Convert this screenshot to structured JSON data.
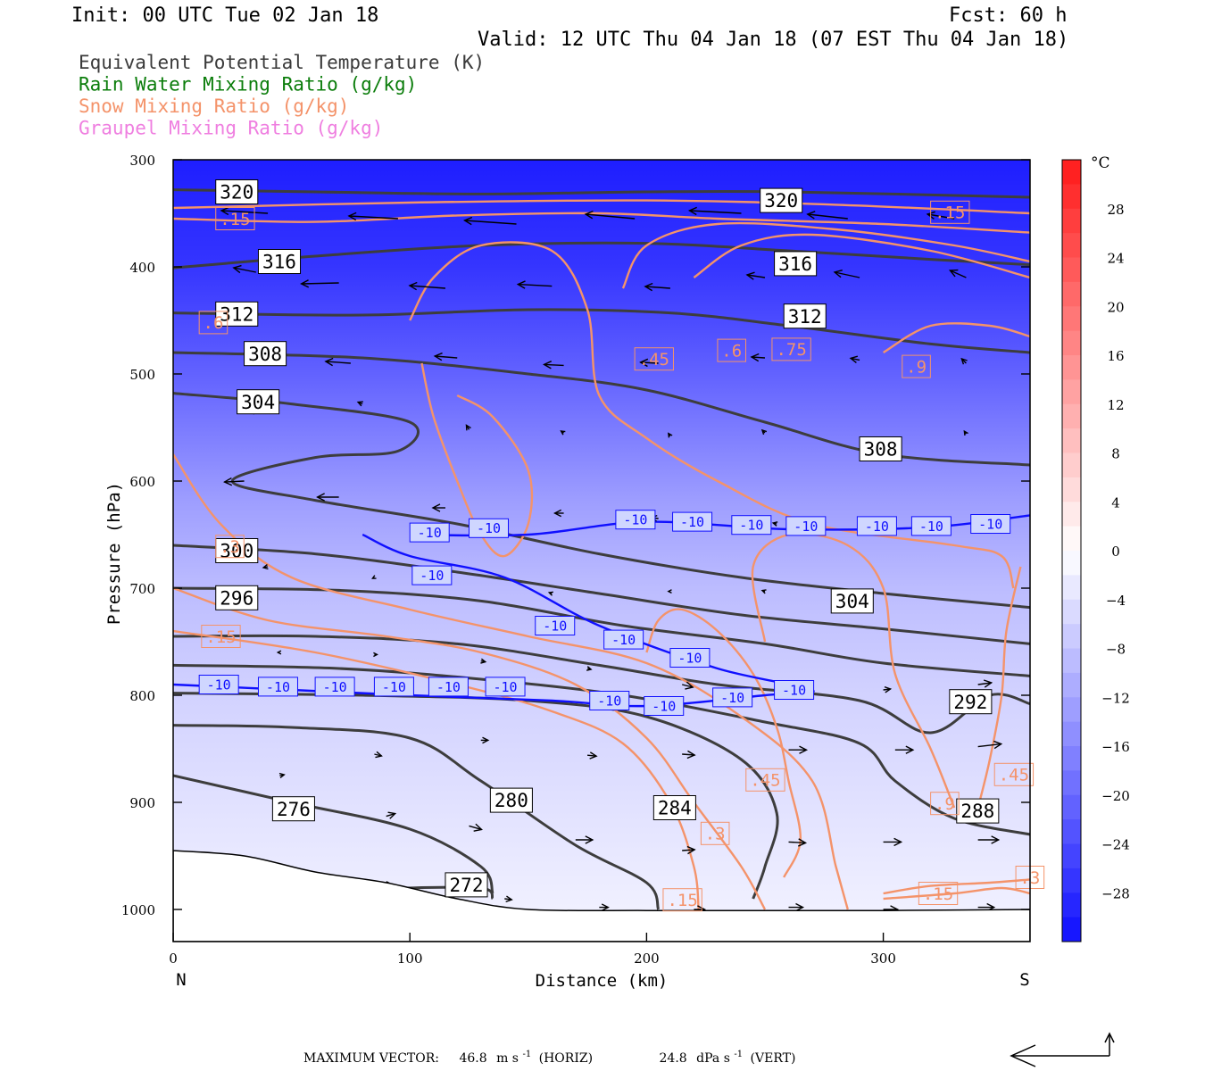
{
  "header": {
    "init": "Init: 00 UTC Tue 02 Jan 18",
    "fcst": "Fcst:   60 h",
    "valid": "Valid: 12 UTC Thu 04 Jan 18 (07 EST Thu 04 Jan 18)"
  },
  "legend": [
    {
      "label": "Equivalent Potential Temperature (K)",
      "color": "#3a3a3a"
    },
    {
      "label": "Rain Water Mixing Ratio (g/kg)",
      "color": "#0b7d0b"
    },
    {
      "label": "Snow Mixing Ratio (g/kg)",
      "color": "#f4936a"
    },
    {
      "label": "Graupel Mixing Ratio (g/kg)",
      "color": "#ef7fe0"
    }
  ],
  "footer": {
    "label": "MAXIMUM VECTOR:",
    "horiz_value": "46.8",
    "horiz_units": "m s",
    "horiz_exp": "-1",
    "horiz_tag": "(HORIZ)",
    "vert_value": "24.8",
    "vert_units": "dPa s",
    "vert_exp": "-1",
    "vert_tag": "(VERT)"
  },
  "chart_data": {
    "type": "cross-section contour",
    "xlabel": "Distance (km)",
    "ylabel": "Pressure (hPa)",
    "xlim": [
      0,
      362
    ],
    "ylim": [
      1030,
      300
    ],
    "x_ticks": [
      0,
      100,
      200,
      300
    ],
    "y_ticks": [
      300,
      400,
      500,
      600,
      700,
      800,
      900,
      1000
    ],
    "x_end_labels": {
      "left": "N",
      "right": "S"
    },
    "colorbar": {
      "units": "°C",
      "range": [
        -32,
        32
      ],
      "labels": [
        28,
        24,
        20,
        16,
        12,
        8,
        4,
        0,
        -4,
        -8,
        -12,
        -16,
        -20,
        -24,
        -28
      ],
      "cold_color": "#0f0fff",
      "warm_color": "#ff1a1a"
    },
    "temperature_field": {
      "levels": [
        300,
        400,
        450,
        500,
        560,
        620,
        700,
        800,
        900,
        1000
      ],
      "celsius": [
        -30,
        -27,
        -24,
        -21,
        -17,
        -13,
        -9,
        -6,
        -4,
        -2
      ]
    },
    "theta_e_contours": [
      {
        "level": 320,
        "points": [
          [
            0,
            328
          ],
          [
            60,
            330
          ],
          [
            130,
            332
          ],
          [
            200,
            330
          ],
          [
            260,
            330
          ],
          [
            362,
            335
          ]
        ],
        "labels": [
          [
            18,
            330
          ],
          [
            248,
            338
          ]
        ]
      },
      {
        "level": 316,
        "points": [
          [
            0,
            401
          ],
          [
            60,
            390
          ],
          [
            130,
            380
          ],
          [
            200,
            378
          ],
          [
            260,
            385
          ],
          [
            320,
            393
          ],
          [
            362,
            398
          ]
        ],
        "labels": [
          [
            36,
            395
          ],
          [
            254,
            397
          ]
        ]
      },
      {
        "level": 312,
        "points": [
          [
            0,
            443
          ],
          [
            80,
            445
          ],
          [
            150,
            440
          ],
          [
            210,
            443
          ],
          [
            260,
            455
          ],
          [
            320,
            472
          ],
          [
            362,
            480
          ]
        ],
        "labels": [
          [
            18,
            444
          ],
          [
            258,
            446
          ]
        ]
      },
      {
        "level": 308,
        "points": [
          [
            0,
            480
          ],
          [
            80,
            485
          ],
          [
            150,
            500
          ],
          [
            200,
            515
          ],
          [
            250,
            545
          ],
          [
            300,
            575
          ],
          [
            362,
            585
          ]
        ],
        "labels": [
          [
            30,
            481
          ],
          [
            290,
            570
          ]
        ]
      },
      {
        "level": 304,
        "points": [
          [
            0,
            518
          ],
          [
            50,
            528
          ],
          [
            100,
            545
          ],
          [
            95,
            572
          ],
          [
            60,
            578
          ],
          [
            25,
            600
          ],
          [
            60,
            618
          ],
          [
            120,
            640
          ],
          [
            180,
            668
          ],
          [
            240,
            690
          ],
          [
            300,
            705
          ],
          [
            362,
            718
          ]
        ],
        "labels": [
          [
            27,
            526
          ],
          [
            278,
            712
          ]
        ]
      },
      {
        "level": 300,
        "points": [
          [
            0,
            660
          ],
          [
            60,
            668
          ],
          [
            120,
            685
          ],
          [
            180,
            705
          ],
          [
            240,
            725
          ],
          [
            300,
            738
          ],
          [
            362,
            752
          ]
        ],
        "labels": [
          [
            18,
            665
          ]
        ]
      },
      {
        "level": 296,
        "points": [
          [
            0,
            700
          ],
          [
            70,
            702
          ],
          [
            130,
            712
          ],
          [
            190,
            735
          ],
          [
            250,
            752
          ],
          [
            300,
            770
          ],
          [
            362,
            782
          ]
        ],
        "labels": [
          [
            18,
            709
          ]
        ]
      },
      {
        "level": 292,
        "points": [
          [
            0,
            745
          ],
          [
            60,
            745
          ],
          [
            120,
            752
          ],
          [
            180,
            772
          ],
          [
            230,
            790
          ],
          [
            290,
            805
          ],
          [
            320,
            835
          ],
          [
            345,
            800
          ],
          [
            362,
            808
          ]
        ],
        "labels": [
          [
            328,
            806
          ]
        ]
      },
      {
        "level": 288,
        "points": [
          [
            0,
            772
          ],
          [
            70,
            775
          ],
          [
            130,
            785
          ],
          [
            190,
            800
          ],
          [
            250,
            825
          ],
          [
            290,
            845
          ],
          [
            305,
            880
          ],
          [
            330,
            915
          ],
          [
            362,
            930
          ]
        ],
        "labels": [
          [
            331,
            908
          ]
        ]
      },
      {
        "level": 284,
        "points": [
          [
            0,
            798
          ],
          [
            80,
            800
          ],
          [
            150,
            805
          ],
          [
            200,
            820
          ],
          [
            240,
            860
          ],
          [
            255,
            910
          ],
          [
            250,
            960
          ],
          [
            245,
            990
          ]
        ],
        "labels": [
          [
            203,
            905
          ]
        ]
      },
      {
        "level": 280,
        "points": [
          [
            0,
            828
          ],
          [
            50,
            830
          ],
          [
            100,
            840
          ],
          [
            130,
            880
          ],
          [
            170,
            940
          ],
          [
            200,
            975
          ],
          [
            205,
            1000
          ]
        ],
        "labels": [
          [
            134,
            898
          ]
        ]
      },
      {
        "level": 276,
        "points": [
          [
            0,
            875
          ],
          [
            50,
            900
          ],
          [
            100,
            925
          ],
          [
            130,
            960
          ],
          [
            135,
            985
          ]
        ],
        "labels": [
          [
            42,
            906
          ]
        ]
      },
      {
        "level": 272,
        "points": [
          [
            95,
            980
          ],
          [
            130,
            980
          ],
          [
            135,
            990
          ]
        ],
        "labels": [
          [
            115,
            977
          ]
        ]
      }
    ],
    "temperature_isotherm_minus10": {
      "level": -10,
      "upper": [
        [
          100,
          650
        ],
        [
          150,
          650
        ],
        [
          200,
          638
        ],
        [
          260,
          645
        ],
        [
          320,
          643
        ],
        [
          362,
          632
        ]
      ],
      "lower": [
        [
          80,
          650
        ],
        [
          100,
          670
        ],
        [
          140,
          690
        ],
        [
          180,
          735
        ],
        [
          230,
          775
        ],
        [
          270,
          795
        ],
        [
          250,
          800
        ],
        [
          200,
          810
        ],
        [
          160,
          805
        ],
        [
          100,
          800
        ],
        [
          50,
          795
        ],
        [
          0,
          790
        ]
      ],
      "labels_upper": [
        [
          100,
          648
        ],
        [
          125,
          644
        ],
        [
          187,
          636
        ],
        [
          211,
          638
        ],
        [
          236,
          641
        ],
        [
          259,
          642
        ],
        [
          289,
          642
        ],
        [
          312,
          642
        ],
        [
          337,
          640
        ]
      ],
      "labels_lower": [
        [
          11,
          790
        ],
        [
          36,
          792
        ],
        [
          60,
          792
        ],
        [
          85,
          792
        ],
        [
          108,
          792
        ],
        [
          132,
          792
        ],
        [
          153,
          735
        ],
        [
          182,
          748
        ],
        [
          210,
          765
        ],
        [
          176,
          805
        ],
        [
          199,
          810
        ],
        [
          228,
          802
        ],
        [
          254,
          795
        ],
        [
          101,
          688
        ]
      ]
    },
    "snow_mixing_ratio_labels": [
      {
        "value": ".15",
        "x": 18,
        "y": 355
      },
      {
        "value": ".15",
        "x": 320,
        "y": 349
      },
      {
        "value": ".6",
        "x": 11,
        "y": 452
      },
      {
        "value": ".45",
        "x": 195,
        "y": 486
      },
      {
        "value": ".6",
        "x": 230,
        "y": 478
      },
      {
        "value": ".75",
        "x": 253,
        "y": 477
      },
      {
        "value": ".9",
        "x": 308,
        "y": 493
      },
      {
        "value": ".3",
        "x": 18,
        "y": 661
      },
      {
        "value": ".15",
        "x": 12,
        "y": 745
      },
      {
        "value": ".45",
        "x": 242,
        "y": 879
      },
      {
        "value": ".45",
        "x": 347,
        "y": 874
      },
      {
        "value": ".3",
        "x": 223,
        "y": 929
      },
      {
        "value": ".9",
        "x": 320,
        "y": 901
      },
      {
        "value": ".15",
        "x": 207,
        "y": 991
      },
      {
        "value": ".15",
        "x": 315,
        "y": 985
      },
      {
        "value": ".3",
        "x": 356,
        "y": 970
      }
    ],
    "wind_vectors": [
      [
        0,
        345,
        -18,
        3
      ],
      [
        40,
        350,
        -52,
        -3
      ],
      [
        95,
        355,
        -55,
        -3
      ],
      [
        145,
        360,
        -58,
        -4
      ],
      [
        195,
        355,
        -55,
        -5
      ],
      [
        240,
        350,
        -58,
        -3
      ],
      [
        285,
        355,
        -45,
        -5
      ],
      [
        330,
        355,
        -30,
        -5
      ],
      [
        35,
        405,
        -25,
        -5
      ],
      [
        70,
        415,
        -42,
        1
      ],
      [
        115,
        420,
        -40,
        -3
      ],
      [
        160,
        418,
        -38,
        -2
      ],
      [
        210,
        420,
        -28,
        -2
      ],
      [
        250,
        410,
        -20,
        -3
      ],
      [
        290,
        410,
        -28,
        -6
      ],
      [
        335,
        410,
        -18,
        -8
      ],
      [
        75,
        490,
        -28,
        -2
      ],
      [
        120,
        485,
        -25,
        -2
      ],
      [
        165,
        492,
        -22,
        -1
      ],
      [
        205,
        490,
        -20,
        -1
      ],
      [
        250,
        485,
        -15,
        -1
      ],
      [
        290,
        487,
        -10,
        -2
      ],
      [
        335,
        490,
        -5,
        -5
      ],
      [
        35,
        535,
        -8,
        -1
      ],
      [
        80,
        528,
        -5,
        -2
      ],
      [
        125,
        552,
        -3,
        -5
      ],
      [
        165,
        555,
        -3,
        -2
      ],
      [
        210,
        558,
        -2,
        -3
      ],
      [
        250,
        555,
        -3,
        -3
      ],
      [
        335,
        556,
        -2,
        -3
      ],
      [
        30,
        600,
        -22,
        1
      ],
      [
        70,
        615,
        -24,
        0
      ],
      [
        115,
        625,
        -14,
        0
      ],
      [
        165,
        630,
        -10,
        0
      ],
      [
        205,
        635,
        -8,
        -1
      ],
      [
        255,
        640,
        -4,
        -1
      ],
      [
        40,
        680,
        -5,
        1
      ],
      [
        85,
        690,
        -2,
        1
      ],
      [
        160,
        705,
        -3,
        -1
      ],
      [
        210,
        703,
        -2,
        0
      ],
      [
        250,
        703,
        -3,
        -1
      ],
      [
        45,
        760,
        -2,
        0
      ],
      [
        85,
        762,
        3,
        0
      ],
      [
        130,
        768,
        5,
        1
      ],
      [
        175,
        775,
        4,
        1
      ],
      [
        215,
        790,
        12,
        3
      ],
      [
        255,
        800,
        10,
        0
      ],
      [
        300,
        795,
        8,
        -1
      ],
      [
        340,
        790,
        15,
        -2
      ],
      [
        45,
        875,
        5,
        -1
      ],
      [
        85,
        855,
        8,
        2
      ],
      [
        130,
        842,
        8,
        0
      ],
      [
        175,
        856,
        10,
        1
      ],
      [
        215,
        855,
        14,
        1
      ],
      [
        260,
        851,
        20,
        0
      ],
      [
        305,
        851,
        20,
        0
      ],
      [
        340,
        848,
        26,
        -3
      ],
      [
        50,
        905,
        6,
        -3
      ],
      [
        90,
        913,
        10,
        -3
      ],
      [
        125,
        922,
        14,
        4
      ],
      [
        170,
        935,
        19,
        0
      ],
      [
        215,
        945,
        14,
        -1
      ],
      [
        260,
        937,
        19,
        1
      ],
      [
        300,
        937,
        20,
        0
      ],
      [
        340,
        935,
        23,
        0
      ],
      [
        50,
        962,
        5,
        1
      ],
      [
        90,
        976,
        5,
        0
      ],
      [
        140,
        990,
        8,
        1
      ],
      [
        180,
        998,
        10,
        0
      ],
      [
        220,
        1000,
        12,
        0
      ],
      [
        260,
        998,
        16,
        0
      ],
      [
        300,
        1000,
        16,
        0
      ],
      [
        340,
        998,
        18,
        0
      ]
    ],
    "terrain_surface": [
      [
        0,
        945
      ],
      [
        30,
        950
      ],
      [
        60,
        965
      ],
      [
        90,
        975
      ],
      [
        120,
        990
      ],
      [
        150,
        1000
      ],
      [
        200,
        1001
      ],
      [
        250,
        1001
      ],
      [
        300,
        1001
      ],
      [
        362,
        1000
      ]
    ]
  }
}
